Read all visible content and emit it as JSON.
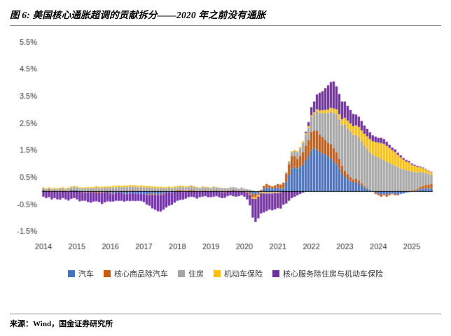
{
  "page": {
    "title": "图 6: 美国核心通胀超调的贡献拆分——2020 年之前没有通胀",
    "source": "来源：Wind，国金证券研究所"
  },
  "chart_data": {
    "type": "bar",
    "stacked": true,
    "title": "美国核心通胀超调的贡献拆分",
    "xlabel": "",
    "ylabel": "",
    "ylim": [
      -1.7,
      5.7
    ],
    "y_ticks": [
      5.5,
      4.5,
      3.5,
      2.5,
      1.5,
      0.5,
      -0.5,
      -1.5
    ],
    "y_tick_suffix": "%",
    "x_start": "2014-01",
    "x_frequency": "monthly",
    "x_tick_labels": [
      "2014",
      "2015",
      "2016",
      "2017",
      "2018",
      "2019",
      "2020",
      "2021",
      "2022",
      "2023",
      "2024",
      "2025"
    ],
    "grid": false,
    "legend_position": "bottom",
    "series": [
      {
        "name": "汽车",
        "color": "#4472C4",
        "values": [
          0.05,
          0.02,
          0.03,
          -0.02,
          0.03,
          0,
          -0.03,
          0.02,
          0,
          -0.02,
          0.03,
          0.05,
          0.05,
          0.02,
          0,
          -0.03,
          -0.05,
          -0.02,
          0,
          0.02,
          -0.02,
          -0.05,
          -0.03,
          0,
          -0.05,
          -0.08,
          -0.05,
          -0.03,
          -0.05,
          -0.08,
          -0.1,
          -0.08,
          -0.05,
          -0.08,
          -0.1,
          -0.08,
          -0.1,
          -0.12,
          -0.1,
          -0.08,
          -0.1,
          -0.12,
          -0.1,
          -0.08,
          -0.05,
          -0.03,
          -0.05,
          -0.02,
          0,
          -0.02,
          -0.03,
          -0.02,
          0,
          0.02,
          0,
          -0.02,
          0,
          0.02,
          0,
          -0.02,
          0,
          0.02,
          0,
          -0.02,
          -0.03,
          -0.02,
          0,
          0.02,
          0.03,
          0.02,
          0,
          0.02,
          0,
          -0.02,
          -0.05,
          -0.1,
          -0.12,
          -0.08,
          0,
          0.1,
          0.15,
          0.12,
          0.1,
          0.12,
          0.15,
          0.1,
          0.12,
          0.35,
          0.6,
          0.85,
          0.9,
          0.85,
          0.9,
          1,
          1.15,
          1.3,
          1.5,
          1.6,
          1.55,
          1.45,
          1.4,
          1.35,
          1.3,
          1.2,
          1.1,
          1,
          0.85,
          0.65,
          0.55,
          0.45,
          0.38,
          0.32,
          0.35,
          0.3,
          0.22,
          0.15,
          0.1,
          0.05,
          0,
          -0.05,
          -0.1,
          -0.12,
          -0.1,
          -0.12,
          -0.1,
          -0.08,
          -0.1,
          -0.12,
          -0.1,
          -0.08,
          -0.05,
          -0.03,
          0,
          0.02,
          0.05,
          0.08,
          0.1,
          0.12,
          0.1,
          0.12
        ]
      },
      {
        "name": "核心商品除汽车",
        "color": "#C55A11",
        "values": [
          0.03,
          0.02,
          0.03,
          0.02,
          0,
          0.02,
          0.03,
          0.02,
          0,
          0.02,
          0.03,
          0.02,
          0,
          -0.02,
          -0.03,
          -0.02,
          0,
          -0.02,
          -0.03,
          -0.05,
          -0.03,
          -0.02,
          0,
          -0.02,
          -0.03,
          -0.02,
          0,
          0.02,
          0,
          -0.02,
          0,
          0.02,
          0.03,
          0.02,
          0,
          0.02,
          0,
          -0.02,
          -0.03,
          -0.05,
          -0.03,
          -0.02,
          -0.03,
          -0.02,
          0,
          0.02,
          0,
          0.02,
          0.03,
          0.05,
          0.03,
          0.02,
          0.03,
          0.05,
          0.03,
          0.02,
          0,
          0.02,
          0.03,
          0.02,
          0,
          0.02,
          0.03,
          0.02,
          0,
          -0.02,
          0,
          0.02,
          0.03,
          0.02,
          0,
          0.02,
          0,
          -0.02,
          -0.05,
          -0.12,
          -0.1,
          -0.05,
          0.05,
          0.1,
          0.12,
          0.1,
          0.08,
          0.1,
          0.12,
          0.15,
          0.2,
          0.3,
          0.4,
          0.45,
          0.4,
          0.35,
          0.4,
          0.45,
          0.55,
          0.6,
          0.7,
          0.65,
          0.7,
          0.65,
          0.6,
          0.55,
          0.5,
          0.55,
          0.5,
          0.45,
          0.35,
          0.3,
          0.22,
          0.18,
          0.15,
          0.12,
          0.12,
          0.1,
          0.08,
          0.05,
          0.03,
          0,
          -0.02,
          -0.05,
          -0.05,
          -0.08,
          -0.05,
          -0.08,
          -0.05,
          -0.03,
          -0.05,
          -0.03,
          0,
          0.02,
          0,
          0.02,
          0.03,
          0.05,
          0.05,
          0.08,
          0.1,
          0.12,
          0.15,
          0.15
        ]
      },
      {
        "name": "住房",
        "color": "#A6A6A6",
        "values": [
          0.05,
          0.05,
          0.06,
          0.06,
          0.07,
          0.07,
          0.08,
          0.08,
          0.08,
          0.09,
          0.09,
          0.1,
          0.1,
          0.1,
          0.11,
          0.11,
          0.12,
          0.12,
          0.12,
          0.13,
          0.13,
          0.13,
          0.14,
          0.14,
          0.14,
          0.15,
          0.15,
          0.15,
          0.15,
          0.16,
          0.16,
          0.16,
          0.15,
          0.15,
          0.15,
          0.15,
          0.15,
          0.14,
          0.14,
          0.13,
          0.13,
          0.12,
          0.12,
          0.12,
          0.12,
          0.12,
          0.12,
          0.12,
          0.12,
          0.12,
          0.13,
          0.13,
          0.13,
          0.13,
          0.13,
          0.12,
          0.12,
          0.12,
          0.12,
          0.12,
          0.12,
          0.12,
          0.12,
          0.11,
          0.11,
          0.11,
          0.11,
          0.11,
          0.1,
          0.1,
          0.1,
          0.1,
          0.1,
          0.08,
          0.06,
          0.03,
          0,
          -0.02,
          -0.03,
          -0.05,
          -0.05,
          -0.06,
          -0.06,
          -0.05,
          -0.05,
          -0.03,
          0,
          0.05,
          0.1,
          0.15,
          0.2,
          0.25,
          0.3,
          0.35,
          0.4,
          0.45,
          0.55,
          0.6,
          0.7,
          0.8,
          0.9,
          1,
          1.1,
          1.2,
          1.3,
          1.4,
          1.45,
          1.5,
          1.7,
          1.7,
          1.68,
          1.65,
          1.62,
          1.6,
          1.55,
          1.5,
          1.45,
          1.4,
          1.35,
          1.3,
          1.25,
          1.2,
          1.15,
          1.1,
          1.05,
          1,
          0.95,
          0.9,
          0.85,
          0.8,
          0.78,
          0.75,
          0.7,
          0.65,
          0.6,
          0.55,
          0.5,
          0.45,
          0.4,
          0.35
        ]
      },
      {
        "name": "机动车保险",
        "color": "#FFC000",
        "values": [
          0.02,
          0.02,
          0.03,
          0.03,
          0.03,
          0.03,
          0.03,
          0.03,
          0.03,
          0.03,
          0.03,
          0.03,
          0.03,
          0.03,
          0.03,
          0.04,
          0.04,
          0.04,
          0.04,
          0.04,
          0.04,
          0.04,
          0.04,
          0.04,
          0.04,
          0.05,
          0.05,
          0.05,
          0.05,
          0.05,
          0.05,
          0.05,
          0.05,
          0.05,
          0.05,
          0.05,
          0.05,
          0.05,
          0.05,
          0.05,
          0.05,
          0.05,
          0.05,
          0.04,
          0.04,
          0.04,
          0.04,
          0.04,
          0.04,
          0.04,
          0.04,
          0.03,
          0.03,
          0.03,
          0.03,
          0.02,
          0.02,
          0.02,
          0.02,
          0.02,
          0.02,
          0.02,
          0.01,
          0.01,
          0.01,
          0.01,
          0,
          0,
          0,
          0,
          0,
          0,
          0,
          -0.01,
          -0.02,
          -0.05,
          -0.06,
          -0.05,
          -0.04,
          -0.03,
          -0.03,
          -0.02,
          -0.02,
          -0.02,
          -0.02,
          -0.01,
          0,
          0.01,
          0.02,
          0.03,
          0.03,
          0.04,
          0.04,
          0.05,
          0.05,
          0.06,
          0.06,
          0.07,
          0.08,
          0.09,
          0.1,
          0.11,
          0.12,
          0.14,
          0.16,
          0.18,
          0.2,
          0.22,
          0.25,
          0.28,
          0.3,
          0.32,
          0.35,
          0.38,
          0.4,
          0.43,
          0.45,
          0.48,
          0.5,
          0.52,
          0.55,
          0.58,
          0.6,
          0.58,
          0.55,
          0.52,
          0.5,
          0.45,
          0.4,
          0.35,
          0.32,
          0.3,
          0.25,
          0.22,
          0.2,
          0.18,
          0.15,
          0.12,
          0.1,
          0.08
        ]
      },
      {
        "name": "核心服务除住房与机动车保险",
        "color": "#7030A0",
        "values": [
          -0.2,
          -0.25,
          -0.22,
          -0.28,
          -0.25,
          -0.3,
          -0.28,
          -0.25,
          -0.3,
          -0.32,
          -0.28,
          -0.25,
          -0.3,
          -0.35,
          -0.32,
          -0.3,
          -0.35,
          -0.38,
          -0.35,
          -0.32,
          -0.35,
          -0.4,
          -0.38,
          -0.35,
          -0.3,
          -0.28,
          -0.3,
          -0.32,
          -0.3,
          -0.28,
          -0.25,
          -0.28,
          -0.3,
          -0.28,
          -0.25,
          -0.28,
          -0.3,
          -0.35,
          -0.4,
          -0.5,
          -0.55,
          -0.6,
          -0.62,
          -0.58,
          -0.55,
          -0.5,
          -0.45,
          -0.4,
          -0.35,
          -0.3,
          -0.28,
          -0.25,
          -0.22,
          -0.2,
          -0.22,
          -0.25,
          -0.22,
          -0.2,
          -0.18,
          -0.2,
          -0.22,
          -0.2,
          -0.18,
          -0.2,
          -0.22,
          -0.2,
          -0.18,
          -0.15,
          -0.18,
          -0.2,
          -0.18,
          -0.15,
          -0.2,
          -0.25,
          -0.4,
          -0.7,
          -0.85,
          -0.8,
          -0.75,
          -0.7,
          -0.65,
          -0.6,
          -0.62,
          -0.6,
          -0.55,
          -0.6,
          -0.5,
          -0.45,
          -0.35,
          -0.25,
          -0.2,
          -0.15,
          -0.1,
          -0.05,
          0.05,
          0.15,
          0.3,
          0.4,
          0.55,
          0.65,
          0.7,
          0.8,
          0.9,
          0.95,
          1,
          0.85,
          0.75,
          0.65,
          0.6,
          0.55,
          0.5,
          0.45,
          0.4,
          0.38,
          0.35,
          0.3,
          0.28,
          0.25,
          0.22,
          0.2,
          0.18,
          0.2,
          0.18,
          0.15,
          0.12,
          0.1,
          0.1,
          0.08,
          0.08,
          0.06,
          0.06,
          0.05,
          0.05,
          0.04,
          0.04,
          0.03,
          0.03,
          0.02,
          0.02,
          0.02
        ]
      }
    ]
  }
}
